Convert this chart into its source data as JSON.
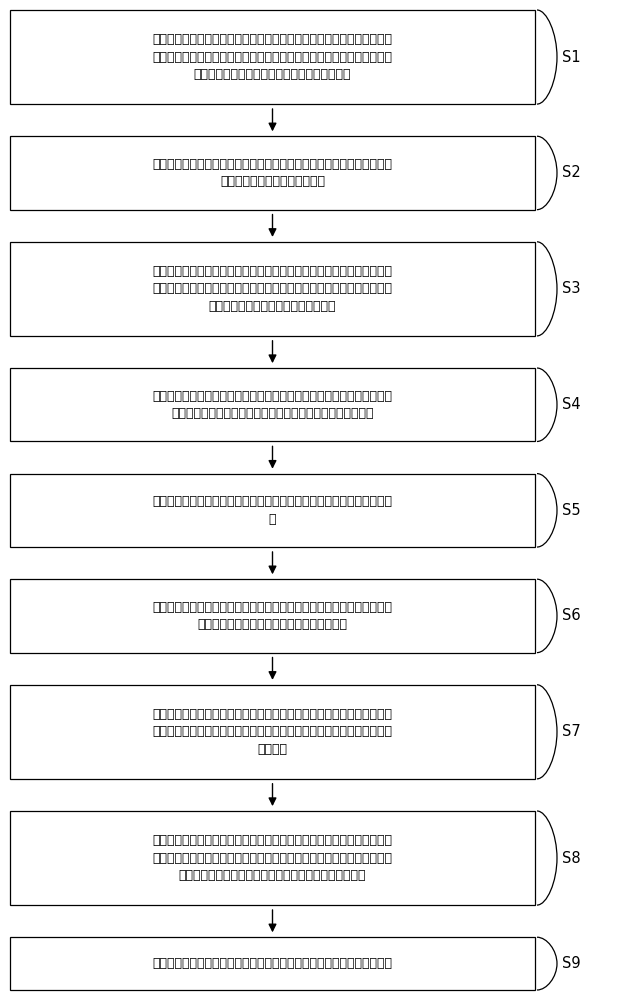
{
  "steps": [
    {
      "id": "S1",
      "text": "供半导体基底，所述半导体基底包括相对的第一表面及第二表面，在所述\n半导体基底的第一表面形成第一凹槽及第二凹槽，所述第二凹槽位于所述\n第一凹槽的外侧，并与所述第一凹槽相隔有间距",
      "lines": 3
    },
    {
      "id": "S2",
      "text": "提供键合基底，所述键合基底包括相对的第一表面及第二表面，在所述键\n合基底的第一表面形成第三凹槽",
      "lines": 2
    },
    {
      "id": "S3",
      "text": "将所述半导体基底与所述键合基底键合，所述半导体基底的第一表面及所\n述键合基底的第一表面为键合面，以在所述半导体基底与所述键合基底之\n间形成由所述第三凹槽构成的空腔结构",
      "lines": 3
    },
    {
      "id": "S4",
      "text": "在所述键合基底内对应于所述第三凹槽的区域形成贯通所述第三凹槽的光\n纤安装孔，且所述光纤安装孔对应于所述第一凹槽之间的区域",
      "lines": 2
    },
    {
      "id": "S5",
      "text": "在所述半导体基底的第二表面对应于所述光纤安装孔的位置形成光学增透\n膜",
      "lines": 2
    },
    {
      "id": "S6",
      "text": "依据所述第二凹槽刻蚀所述半导体基底，以形成贯穿所述半导体基底的通\n孔，所述通孔暴露出所述键合基底的第一表面",
      "lines": 2
    },
    {
      "id": "S7",
      "text": "在所述通孔底部的所述键合基底的第一表面形成第一电极，并在所述半导\n体基底的第二表面形成第二电极，所述第二电极位于所述通孔与所述第一\n凹槽之间",
      "lines": 3
    },
    {
      "id": "S8",
      "text": "依据所述第一凹槽刻蚀所述半导体基底，以释放可动质量块结构，所述可\n动质量块结构包括：中心质量块、位于所述中心质量块上表面的光学增透\n膜及将所述中心质量块与所述半导体基底相连接的悬臂梁",
      "lines": 3
    },
    {
      "id": "S9",
      "text": "在所述中心质量块的下表面对应于所述光学增透膜的位置形成光学高反膜",
      "lines": 1
    }
  ],
  "box_facecolor": "#ffffff",
  "box_edgecolor": "#000000",
  "arrow_color": "#000000",
  "label_color": "#000000",
  "background_color": "#ffffff",
  "font_size": 9.0,
  "label_font_size": 10.5,
  "fig_width": 6.18,
  "fig_height": 10.0
}
